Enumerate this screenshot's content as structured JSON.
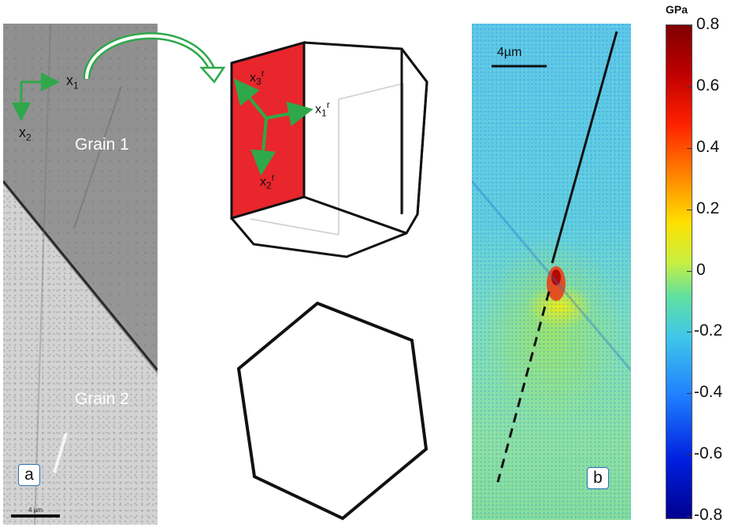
{
  "panel_a": {
    "letter": "a",
    "grain1_label": "Grain 1",
    "grain2_label": "Grain 2",
    "scale_bar_label": "4 µm",
    "axes": {
      "x1": "x",
      "x1_sub": "1",
      "x2": "x",
      "x2_sub": "2"
    }
  },
  "crystal": {
    "x3r": "x",
    "x3r_sub": "3",
    "x3r_sup": "r",
    "x1r": "x",
    "x1r_sub": "1",
    "x1r_sup": "r",
    "x2r": "x",
    "x2r_sub": "2",
    "x2r_sup": "r",
    "face_color": "#e8262c",
    "arrow_color": "#2ea84a"
  },
  "panel_b": {
    "letter": "b",
    "scale_bar_label": "4µm"
  },
  "colorbar": {
    "unit": "GPa",
    "ticks": [
      "0.8",
      "0.6",
      "0.4",
      "0.2",
      "0",
      "-0.2",
      "-0.4",
      "-0.6",
      "-0.8"
    ],
    "range": [
      -0.8,
      0.8
    ]
  }
}
